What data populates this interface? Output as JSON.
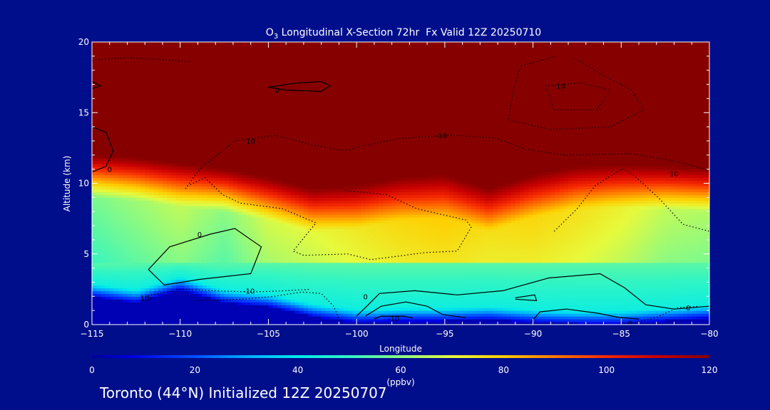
{
  "chart_data": {
    "type": "heatmap",
    "title_parts": {
      "species": "O",
      "subscript": "3",
      "rest": " Longitudinal X-Section 72hr  Fx Valid 12Z 20250710"
    },
    "xlabel": "Longitude",
    "ylabel": "Altitude (km)",
    "xlim": [
      -115,
      -80
    ],
    "ylim": [
      0,
      20
    ],
    "xticks": [
      "-115",
      "-110",
      "-105",
      "-100",
      "-95",
      "-90",
      "-85",
      "-80"
    ],
    "xtick_values": [
      -115,
      -110,
      -105,
      -100,
      -95,
      -90,
      -85,
      -80
    ],
    "yticks": [
      "0",
      "5",
      "10",
      "15",
      "20"
    ],
    "ytick_values": [
      0,
      5,
      10,
      15,
      20
    ],
    "colorbar": {
      "label": "(ppbv)",
      "range": [
        0,
        120
      ],
      "ticks": [
        "0",
        "20",
        "40",
        "60",
        "80",
        "100",
        "120"
      ],
      "tick_values": [
        0,
        20,
        40,
        60,
        80,
        100,
        120
      ]
    },
    "field": {
      "description_grid_x": [
        -115,
        -112.5,
        -110,
        -107.5,
        -105,
        -102.5,
        -100,
        -97.5,
        -95,
        -92.5,
        -90,
        -87.5,
        -85,
        -82.5,
        -80
      ],
      "surface_km": [
        2.0,
        1.6,
        2.5,
        1.6,
        1.3,
        0.6,
        0.2,
        0.3,
        0.3,
        0.4,
        0.2,
        0.1,
        0.1,
        0.3,
        0.5
      ],
      "stratosphere_base_km": [
        12.0,
        11.8,
        11.4,
        11.0,
        10.4,
        9.6,
        9.8,
        10.4,
        10.6,
        9.6,
        10.6,
        11.2,
        11.3,
        11.2,
        11.0
      ],
      "mid_values_ppbv": [
        58,
        62,
        66,
        60,
        68,
        70,
        74,
        78,
        80,
        76,
        78,
        76,
        72,
        66,
        64
      ]
    },
    "contour_labels": [
      {
        "text": "0",
        "x": -104.5,
        "y": 16.6
      },
      {
        "text": "-10",
        "x": -88.5,
        "y": 16.9
      },
      {
        "text": "10",
        "x": -106.0,
        "y": 13.0
      },
      {
        "text": "-10",
        "x": -95.2,
        "y": 13.4
      },
      {
        "text": "0",
        "x": -114.0,
        "y": 11.0
      },
      {
        "text": "10",
        "x": -82.0,
        "y": 10.7
      },
      {
        "text": "0",
        "x": -108.9,
        "y": 6.4
      },
      {
        "text": "-10",
        "x": -106.1,
        "y": 2.4
      },
      {
        "text": "10",
        "x": -112.0,
        "y": 1.9
      },
      {
        "text": "0",
        "x": -99.5,
        "y": 2.0
      },
      {
        "text": "-10",
        "x": -97.9,
        "y": 0.45
      },
      {
        "text": "0",
        "x": -81.2,
        "y": 1.2
      },
      {
        "text": "0",
        "x": -84.5,
        "y": 0.1
      }
    ],
    "contours_solid": [
      [
        [
          -115,
          14.0
        ],
        [
          -114.2,
          13.6
        ],
        [
          -113.8,
          12.3
        ],
        [
          -114.2,
          11.2
        ],
        [
          -115,
          10.8
        ]
      ],
      [
        [
          -115,
          17.2
        ],
        [
          -114.5,
          16.9
        ],
        [
          -115,
          16.7
        ]
      ],
      [
        [
          -105.0,
          16.8
        ],
        [
          -103.4,
          17.1
        ],
        [
          -102.0,
          17.2
        ],
        [
          -101.5,
          16.9
        ],
        [
          -102.0,
          16.5
        ],
        [
          -104.0,
          16.6
        ],
        [
          -105.0,
          16.8
        ]
      ],
      [
        [
          -111.8,
          3.9
        ],
        [
          -110.6,
          5.5
        ],
        [
          -108.3,
          6.4
        ],
        [
          -106.9,
          6.8
        ],
        [
          -105.4,
          5.5
        ],
        [
          -106.0,
          3.6
        ],
        [
          -108.9,
          3.2
        ],
        [
          -110.9,
          2.8
        ],
        [
          -111.8,
          3.9
        ]
      ],
      [
        [
          -100.0,
          0.6
        ],
        [
          -99.5,
          1.2
        ],
        [
          -98.7,
          2.2
        ],
        [
          -96.7,
          2.4
        ],
        [
          -94.3,
          2.1
        ],
        [
          -91.7,
          2.4
        ],
        [
          -89.1,
          3.3
        ],
        [
          -86.2,
          3.6
        ],
        [
          -84.8,
          2.6
        ],
        [
          -83.6,
          1.4
        ],
        [
          -82.0,
          1.1
        ],
        [
          -80,
          1.3
        ]
      ],
      [
        [
          -99.5,
          0.6
        ],
        [
          -98.6,
          1.3
        ],
        [
          -97.2,
          1.6
        ],
        [
          -96.0,
          1.3
        ],
        [
          -95.1,
          0.7
        ],
        [
          -93.8,
          0.5
        ]
      ],
      [
        [
          -99.0,
          0.4
        ],
        [
          -98.6,
          0.6
        ],
        [
          -97.3,
          0.6
        ],
        [
          -96.8,
          0.45
        ]
      ],
      [
        [
          -90.1,
          0.2
        ],
        [
          -89.6,
          0.9
        ],
        [
          -88.1,
          1.1
        ],
        [
          -86.3,
          0.8
        ],
        [
          -85.1,
          0.5
        ],
        [
          -84.0,
          0.4
        ]
      ],
      [
        [
          -91.0,
          1.9
        ],
        [
          -89.9,
          2.1
        ],
        [
          -89.8,
          1.7
        ],
        [
          -91.0,
          1.8
        ]
      ]
    ],
    "contours_dotted": [
      [
        [
          -115,
          18.7
        ],
        [
          -113.0,
          18.9
        ],
        [
          -111.5,
          18.8
        ],
        [
          -109.5,
          18.6
        ]
      ],
      [
        [
          -88.7,
          19.0
        ],
        [
          -90.7,
          18.3
        ],
        [
          -91.1,
          16.7
        ],
        [
          -91.4,
          14.5
        ],
        [
          -89.0,
          13.8
        ],
        [
          -85.6,
          14.0
        ],
        [
          -83.7,
          15.2
        ],
        [
          -84.4,
          16.6
        ],
        [
          -86.1,
          17.7
        ],
        [
          -87.7,
          18.9
        ]
      ],
      [
        [
          -89.3,
          16.9
        ],
        [
          -87.3,
          17.1
        ],
        [
          -85.6,
          16.6
        ],
        [
          -86.4,
          15.2
        ],
        [
          -88.8,
          15.2
        ],
        [
          -89.3,
          16.9
        ]
      ],
      [
        [
          -109.7,
          9.6
        ],
        [
          -108.9,
          11.0
        ],
        [
          -106.9,
          13.0
        ],
        [
          -104.6,
          13.4
        ],
        [
          -102.4,
          12.7
        ],
        [
          -100.7,
          12.3
        ],
        [
          -99.5,
          12.7
        ],
        [
          -97.4,
          13.2
        ],
        [
          -94.6,
          13.4
        ],
        [
          -92.1,
          13.2
        ],
        [
          -90.4,
          12.4
        ],
        [
          -88.2,
          12.0
        ],
        [
          -84.4,
          12.1
        ],
        [
          -81.7,
          11.5
        ],
        [
          -80,
          10.9
        ]
      ],
      [
        [
          -109.6,
          9.8
        ],
        [
          -108.6,
          10.4
        ],
        [
          -107.6,
          9.2
        ],
        [
          -106.6,
          8.6
        ],
        [
          -104.2,
          8.2
        ],
        [
          -102.3,
          7.2
        ],
        [
          -103.6,
          5.2
        ],
        [
          -103.0,
          4.9
        ],
        [
          -100.5,
          5.0
        ],
        [
          -99.2,
          4.6
        ],
        [
          -97.9,
          4.8
        ],
        [
          -96.1,
          5.1
        ],
        [
          -94.3,
          5.2
        ],
        [
          -93.5,
          6.9
        ],
        [
          -93.8,
          7.4
        ],
        [
          -95.2,
          7.8
        ],
        [
          -96.6,
          8.2
        ],
        [
          -98.3,
          9.2
        ],
        [
          -100.8,
          9.5
        ]
      ],
      [
        [
          -88.8,
          6.6
        ],
        [
          -87.5,
          8.2
        ],
        [
          -86.5,
          9.8
        ],
        [
          -85.0,
          11.0
        ],
        [
          -84.5,
          10.8
        ],
        [
          -82.9,
          9.0
        ],
        [
          -81.5,
          7.1
        ],
        [
          -80,
          6.6
        ]
      ],
      [
        [
          -109.2,
          1.7
        ],
        [
          -106.4,
          1.8
        ],
        [
          -104.7,
          2.0
        ],
        [
          -103.1,
          2.3
        ],
        [
          -102.0,
          2.2
        ],
        [
          -101.3,
          1.3
        ],
        [
          -101.0,
          0.4
        ]
      ],
      [
        [
          -112.0,
          2.0
        ],
        [
          -110.0,
          2.5
        ],
        [
          -108.0,
          2.4
        ],
        [
          -106.0,
          2.3
        ],
        [
          -104.0,
          2.4
        ],
        [
          -102.6,
          2.5
        ]
      ],
      [
        [
          -84.4,
          0.1
        ],
        [
          -83.0,
          0.5
        ],
        [
          -81.8,
          1.2
        ],
        [
          -80.6,
          1.3
        ]
      ]
    ]
  },
  "footer": {
    "caption": "Toronto (44°N) Initialized 12Z 20250707"
  }
}
